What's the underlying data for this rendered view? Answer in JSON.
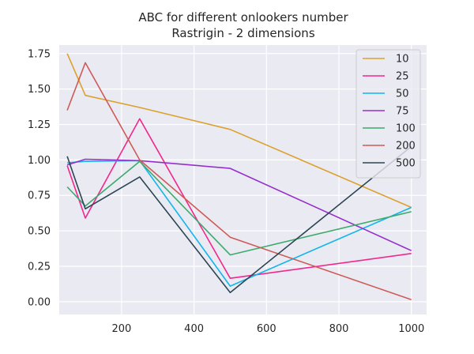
{
  "chart_data": {
    "type": "line",
    "title": "ABC for different onlookers number",
    "subtitle": "Rastrigin - 2 dimensions",
    "xlabel": "",
    "ylabel": "",
    "xlim": [
      28,
      1042
    ],
    "ylim": [
      -0.09,
      1.81
    ],
    "xticks": [
      200,
      400,
      600,
      800,
      1000
    ],
    "yticks": [
      0.0,
      0.25,
      0.5,
      0.75,
      1.0,
      1.25,
      1.5,
      1.75
    ],
    "xtick_labels": [
      "200",
      "400",
      "600",
      "800",
      "1000"
    ],
    "ytick_labels": [
      "0.00",
      "0.25",
      "0.50",
      "0.75",
      "1.00",
      "1.25",
      "1.50",
      "1.75"
    ],
    "grid": true,
    "legend_position": "top-right",
    "background": "#eaeaf2",
    "x": [
      50,
      100,
      250,
      500,
      1000
    ],
    "series": [
      {
        "name": "10",
        "color": "#dba12c",
        "values": [
          1.75,
          1.455,
          1.37,
          1.215,
          0.665
        ]
      },
      {
        "name": "25",
        "color": "#f2278e",
        "values": [
          0.96,
          0.59,
          1.29,
          0.165,
          0.34
        ]
      },
      {
        "name": "50",
        "color": "#12b5ec",
        "values": [
          0.98,
          0.99,
          0.995,
          0.11,
          0.665
        ]
      },
      {
        "name": "75",
        "color": "#9630cc",
        "values": [
          0.965,
          1.005,
          0.995,
          0.94,
          0.36
        ]
      },
      {
        "name": "100",
        "color": "#3daa6c",
        "values": [
          0.81,
          0.675,
          0.99,
          0.33,
          0.635
        ]
      },
      {
        "name": "200",
        "color": "#cd5a57",
        "values": [
          1.35,
          1.685,
          1.0,
          0.455,
          0.015
        ]
      },
      {
        "name": "500",
        "color": "#2e4553",
        "values": [
          1.025,
          0.655,
          0.88,
          0.065,
          1.095
        ]
      }
    ]
  }
}
